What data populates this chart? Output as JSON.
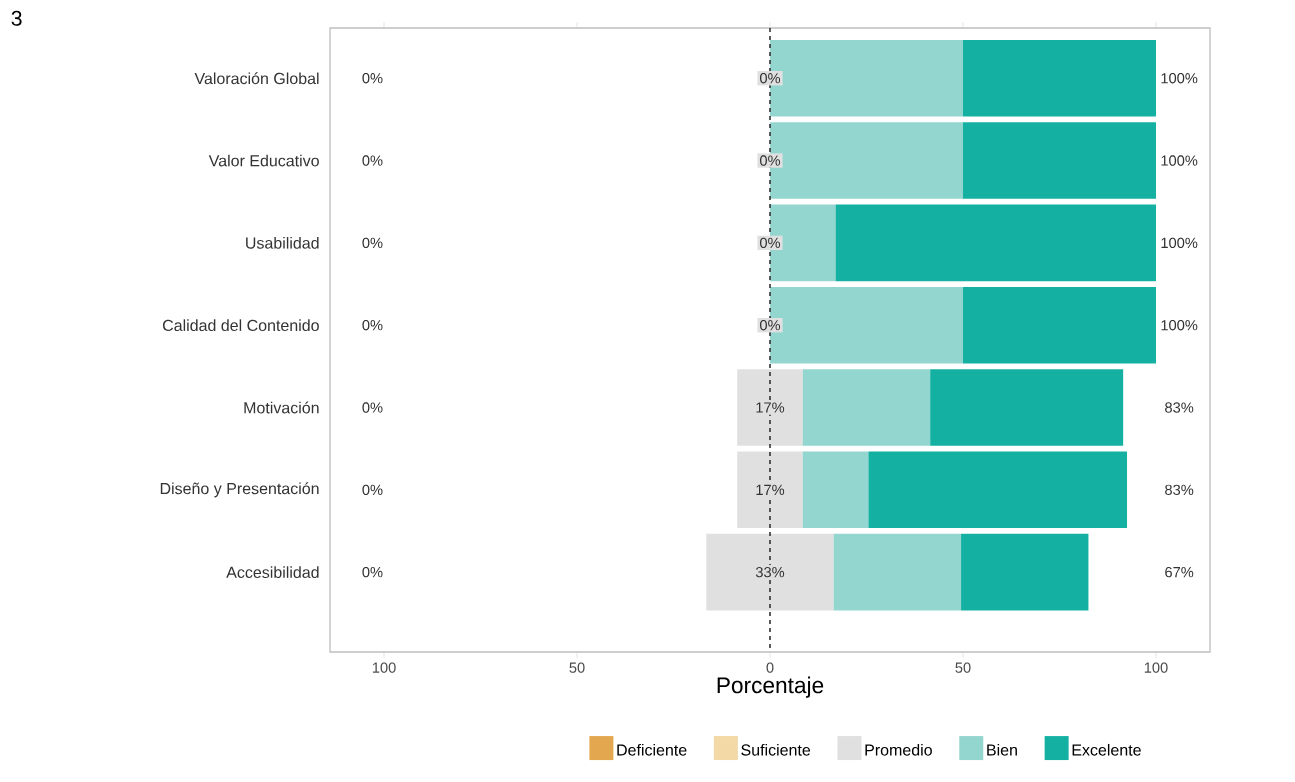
{
  "chart_data": {
    "type": "bar",
    "orientation": "horizontal",
    "xlabel": "Porcentaje",
    "categories": [
      "Valoración Global",
      "Valor Educativo",
      "Usabilidad",
      "Calidad del Contenido",
      "Motivación",
      "Diseño y Presentación",
      "Accesibilidad"
    ],
    "series": [
      {
        "name": "Deficiente",
        "color": "#e3a84f",
        "values": [
          0,
          0,
          0,
          0,
          0,
          0,
          0
        ]
      },
      {
        "name": "Suficiente",
        "color": "#f2d9a6",
        "values": [
          0,
          0,
          0,
          0,
          0,
          0,
          0
        ]
      },
      {
        "name": "Promedio",
        "color": "#e0e0e0",
        "base": [
          null,
          null,
          null,
          null,
          -8.5,
          -8.5,
          -16.5
        ],
        "values": [
          0,
          0,
          0,
          0,
          17,
          17,
          33
        ],
        "value_labels": [
          "0%",
          "0%",
          "0%",
          "0%",
          "17%",
          "17%",
          "33%"
        ]
      },
      {
        "name": "Bien",
        "color": "#93d5cf",
        "base": [
          0,
          0,
          0,
          0,
          8.5,
          8.5,
          16.5
        ],
        "values": [
          50,
          50,
          17,
          50,
          33,
          17,
          33
        ]
      },
      {
        "name": "Excelente",
        "color": "#14b1a3",
        "base": [
          50,
          50,
          17,
          50,
          41.5,
          25.5,
          49.5
        ],
        "values": [
          50,
          50,
          83,
          50,
          50,
          67,
          33
        ]
      }
    ],
    "xlim": [
      -114,
      114
    ],
    "xticks": [
      {
        "value": -100,
        "label": "100"
      },
      {
        "value": -50,
        "label": "50"
      },
      0,
      50,
      100
    ],
    "ref_lines": [
      {
        "axis": "x",
        "value": 0,
        "color": "#333333",
        "line_style": "dashed"
      }
    ],
    "legend": "bottom",
    "annotations": [
      "3",
      "0%",
      "0%",
      "0%",
      "0%",
      "0%",
      "0%",
      "0%",
      "100%",
      "100%",
      "100%",
      "100%",
      "83%",
      "83%",
      "67%"
    ]
  }
}
